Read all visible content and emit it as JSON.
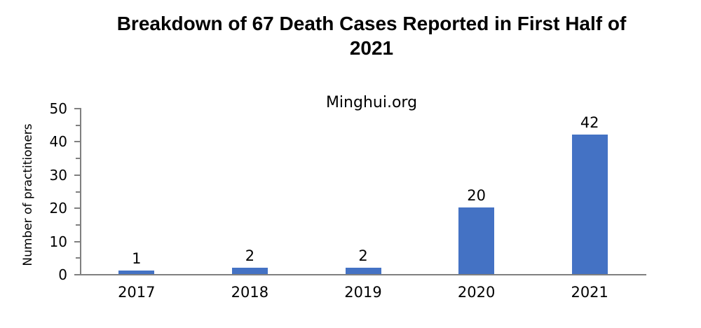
{
  "chart_data": {
    "type": "bar",
    "title": "Breakdown of 67 Death Cases Reported in First Half of 2021",
    "title_lines": [
      "Breakdown of 67 Death Cases Reported in First Half of",
      "2021"
    ],
    "subtitle": "Minghui.org",
    "categories": [
      "2017",
      "2018",
      "2019",
      "2020",
      "2021"
    ],
    "values": [
      1,
      2,
      2,
      20,
      42
    ],
    "xlabel": "",
    "ylabel": "Number of practitioners",
    "ylim": [
      0,
      50
    ],
    "y_major_ticks": [
      0,
      10,
      20,
      30,
      40,
      50
    ],
    "y_minor_ticks": [
      5,
      15,
      25,
      35,
      45
    ],
    "data_labels": true,
    "grid": false,
    "legend": false,
    "bar_color": "#4472C4",
    "axis_color": "#808080",
    "text_color": "#000000"
  }
}
